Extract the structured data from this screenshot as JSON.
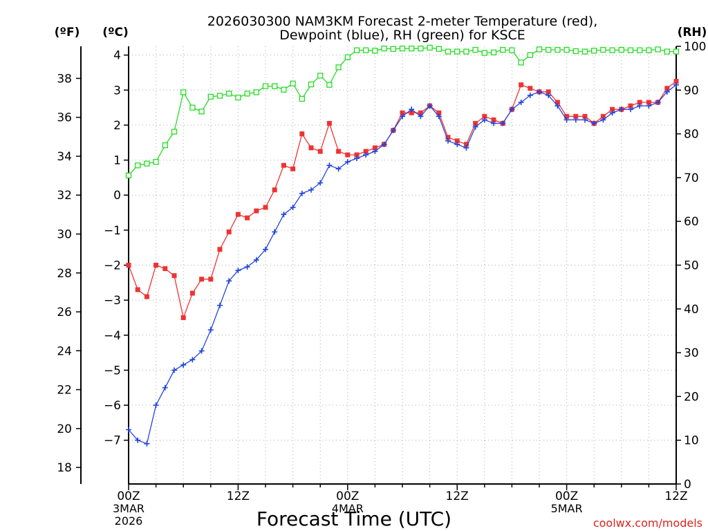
{
  "chart_data": {
    "type": "line",
    "title_line1": "2026030300 NAM3KM Forecast 2-meter Temperature (red),",
    "title_line2": "Dewpoint (blue), RH (green) for KSCE",
    "xlabel": "Forecast Time (UTC)",
    "credit": "coolwx.com/models",
    "unit_labels": {
      "fahrenheit": "(ºF)",
      "celsius": "(ºC)",
      "rh": "(RH)"
    },
    "x_range_hours": [
      0,
      60
    ],
    "x_ticks": [
      {
        "hour": 0,
        "label": "00Z",
        "date": "3MAR",
        "year": "2026"
      },
      {
        "hour": 12,
        "label": "12Z",
        "date": "",
        "year": ""
      },
      {
        "hour": 24,
        "label": "00Z",
        "date": "4MAR",
        "year": ""
      },
      {
        "hour": 36,
        "label": "12Z",
        "date": "",
        "year": ""
      },
      {
        "hour": 48,
        "label": "00Z",
        "date": "5MAR",
        "year": ""
      },
      {
        "hour": 60,
        "label": "12Z",
        "date": "",
        "year": ""
      }
    ],
    "celsius_range": [
      -8.25,
      4.25
    ],
    "celsius_ticks": [
      4,
      3,
      2,
      1,
      0,
      -1,
      -2,
      -3,
      -4,
      -5,
      -6,
      -7
    ],
    "fahrenheit_ticks": [
      38,
      36,
      34,
      32,
      30,
      28,
      26,
      24,
      22,
      20,
      18
    ],
    "rh_range": [
      0,
      100
    ],
    "rh_ticks": [
      100,
      90,
      80,
      70,
      60,
      50,
      40,
      30,
      20,
      10,
      0
    ],
    "colors": {
      "temperature": "#ee3333",
      "dewpoint": "#2244dd",
      "rh": "#22dd22",
      "grid": "#aaaaaa",
      "credit": "#dd2222"
    },
    "series": [
      {
        "name": "Temperature",
        "units": "C",
        "values": [
          -2.0,
          -2.7,
          -2.9,
          -2.0,
          -2.1,
          -2.3,
          -3.5,
          -2.8,
          -2.4,
          -2.4,
          -1.55,
          -1.05,
          -0.55,
          -0.65,
          -0.45,
          -0.35,
          0.15,
          0.85,
          0.75,
          1.75,
          1.35,
          1.25,
          2.05,
          1.25,
          1.15,
          1.15,
          1.25,
          1.35,
          1.45,
          1.85,
          2.35,
          2.35,
          2.35,
          2.55,
          2.35,
          1.65,
          1.55,
          1.45,
          2.05,
          2.25,
          2.15,
          2.05,
          2.45,
          3.15,
          3.05,
          2.95,
          2.95,
          2.65,
          2.25,
          2.25,
          2.25,
          2.05,
          2.25,
          2.45,
          2.45,
          2.55,
          2.65,
          2.65,
          2.65,
          3.05,
          3.25
        ]
      },
      {
        "name": "Dewpoint",
        "units": "C",
        "values": [
          -6.7,
          -7.0,
          -7.1,
          -6.0,
          -5.5,
          -5.0,
          -4.85,
          -4.7,
          -4.45,
          -3.85,
          -3.15,
          -2.45,
          -2.15,
          -2.05,
          -1.85,
          -1.55,
          -1.05,
          -0.55,
          -0.35,
          0.05,
          0.15,
          0.35,
          0.85,
          0.75,
          0.95,
          1.05,
          1.15,
          1.25,
          1.45,
          1.85,
          2.25,
          2.45,
          2.25,
          2.55,
          2.25,
          1.55,
          1.45,
          1.35,
          1.95,
          2.15,
          2.05,
          2.05,
          2.45,
          2.65,
          2.85,
          2.95,
          2.85,
          2.55,
          2.15,
          2.15,
          2.15,
          2.05,
          2.15,
          2.35,
          2.45,
          2.45,
          2.55,
          2.55,
          2.65,
          2.95,
          3.15
        ]
      },
      {
        "name": "RH",
        "units": "%",
        "values": [
          70.5,
          72.8,
          73.2,
          73.6,
          77.4,
          80.5,
          89.5,
          86.0,
          85.1,
          88.5,
          88.7,
          89.2,
          88.3,
          89.2,
          89.5,
          90.9,
          90.9,
          90.1,
          91.5,
          88.0,
          91.3,
          93.3,
          91.2,
          95.2,
          97.5,
          99.1,
          99.1,
          99.0,
          99.5,
          99.4,
          99.5,
          99.5,
          99.5,
          99.7,
          99.4,
          98.8,
          98.8,
          98.8,
          99.2,
          98.5,
          98.6,
          99.2,
          99.1,
          96.3,
          98.0,
          99.3,
          99.2,
          99.2,
          99.2,
          98.9,
          98.8,
          99.0,
          99.2,
          99.1,
          99.2,
          99.1,
          99.1,
          99.1,
          99.3,
          98.8,
          98.8
        ]
      }
    ]
  }
}
